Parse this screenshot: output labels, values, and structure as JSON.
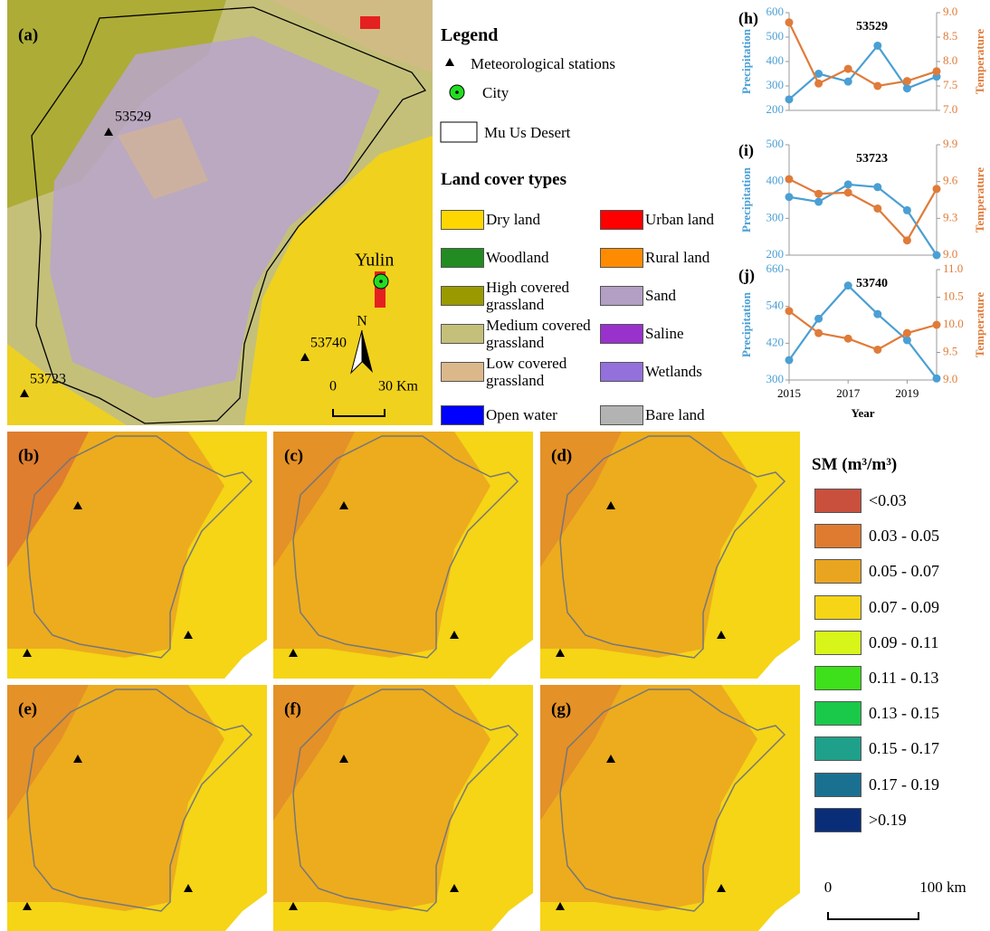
{
  "map_a": {
    "label": "(a)",
    "stations": [
      "53529",
      "53723",
      "53740"
    ],
    "city": "Yulin",
    "north": "N",
    "scale": [
      "0",
      "30 Km"
    ]
  },
  "legend": {
    "title": "Legend",
    "items": [
      "Meteorological stations",
      "City",
      "Mu Us Desert"
    ],
    "land_cover_title": "Land cover types",
    "land_cover": [
      {
        "label": "Dry land",
        "color": "#ffd700"
      },
      {
        "label": "Urban land",
        "color": "#ff0000"
      },
      {
        "label": "Woodland",
        "color": "#228b22"
      },
      {
        "label": "Rural land",
        "color": "#ff8c00"
      },
      {
        "label": "High covered grassland",
        "color": "#9a9a00"
      },
      {
        "label": "Sand",
        "color": "#b39ec4"
      },
      {
        "label": "Medium covered grassland",
        "color": "#c4c07a"
      },
      {
        "label": "Saline",
        "color": "#9932cc"
      },
      {
        "label": "Low covered grassland",
        "color": "#dbb88a"
      },
      {
        "label": "Wetlands",
        "color": "#9370db"
      },
      {
        "label": "Open water",
        "color": "#0000ff"
      },
      {
        "label": "Bare land",
        "color": "#b3b3b3"
      }
    ]
  },
  "sm_maps": {
    "labels": [
      "(b)",
      "(c)",
      "(d)",
      "(e)",
      "(f)",
      "(g)"
    ]
  },
  "sm_legend": {
    "title": "SM (m³/m³)",
    "scale": [
      "0",
      "100 km"
    ],
    "classes": [
      {
        "label": "<0.03",
        "color": "#c9503c"
      },
      {
        "label": "0.03 - 0.05",
        "color": "#de7b30"
      },
      {
        "label": "0.05 - 0.07",
        "color": "#eaa520"
      },
      {
        "label": "0.07 - 0.09",
        "color": "#f5d516"
      },
      {
        "label": "0.09 - 0.11",
        "color": "#d8f51a"
      },
      {
        "label": "0.11 - 0.13",
        "color": "#3de01a"
      },
      {
        "label": "0.13 - 0.15",
        "color": "#1ac84a"
      },
      {
        "label": "0.15 - 0.17",
        "color": "#1ea08a"
      },
      {
        "label": "0.17 - 0.19",
        "color": "#1a7090"
      },
      {
        "label": ">0.19",
        "color": "#0a2d78"
      }
    ]
  },
  "chart_data": [
    {
      "type": "line",
      "label": "(h)",
      "title": "53529",
      "x": [
        2015,
        2016,
        2017,
        2018,
        2019,
        2020
      ],
      "xlim": [
        2015,
        2020
      ],
      "ylim": [
        200,
        600
      ],
      "yticks": [
        200,
        300,
        400,
        500,
        600
      ],
      "y2lim": [
        7,
        9
      ],
      "y2ticks": [
        {
          "value": 7,
          "label": "7.0"
        },
        7.5,
        {
          "value": 8,
          "label": "8.0"
        },
        8.5,
        {
          "value": 9,
          "label": "9.0"
        }
      ],
      "series": [
        {
          "name": "Precipitation",
          "color": "#4a9fd4",
          "values": [
            245,
            350,
            318,
            465,
            290,
            338
          ]
        },
        {
          "name": "Temperature",
          "color": "#e07b39",
          "axis": "y2",
          "values": [
            8.8,
            7.55,
            7.85,
            7.5,
            7.6,
            7.8
          ]
        }
      ]
    },
    {
      "type": "line",
      "label": "(i)",
      "title": "53723",
      "x": [
        2015,
        2016,
        2017,
        2018,
        2019,
        2020
      ],
      "xlim": [
        2015,
        2020
      ],
      "ylim": [
        200,
        500
      ],
      "yticks": [
        200,
        300,
        400,
        500
      ],
      "y2lim": [
        9,
        9.9
      ],
      "y2ticks": [
        {
          "value": 9,
          "label": "9.0"
        },
        9.3,
        9.6,
        9.9
      ],
      "series": [
        {
          "name": "Precipitation",
          "color": "#4a9fd4",
          "values": [
            358,
            345,
            392,
            385,
            322,
            200
          ]
        },
        {
          "name": "Temperature",
          "color": "#e07b39",
          "axis": "y2",
          "values": [
            9.62,
            9.5,
            9.51,
            9.38,
            9.12,
            9.54
          ]
        }
      ]
    },
    {
      "type": "line",
      "label": "(j)",
      "title": "53740",
      "x": [
        2015,
        2016,
        2017,
        2018,
        2019,
        2020
      ],
      "xlim": [
        2015,
        2020
      ],
      "xticks": [
        2015,
        2017,
        2019
      ],
      "xlabel": "Year",
      "ylim": [
        300,
        660
      ],
      "yticks": [
        300,
        420,
        540,
        660
      ],
      "y2lim": [
        9,
        11
      ],
      "y2ticks": [
        {
          "value": 9,
          "label": "9.0"
        },
        9.5,
        {
          "value": 10,
          "label": "10.0"
        },
        10.5,
        {
          "value": 11,
          "label": "11.0"
        }
      ],
      "series": [
        {
          "name": "Precipitation",
          "color": "#4a9fd4",
          "values": [
            365,
            500,
            608,
            515,
            430,
            305
          ]
        },
        {
          "name": "Temperature",
          "color": "#e07b39",
          "axis": "y2",
          "values": [
            10.25,
            9.85,
            9.75,
            9.55,
            9.85,
            10.0
          ]
        }
      ]
    }
  ]
}
